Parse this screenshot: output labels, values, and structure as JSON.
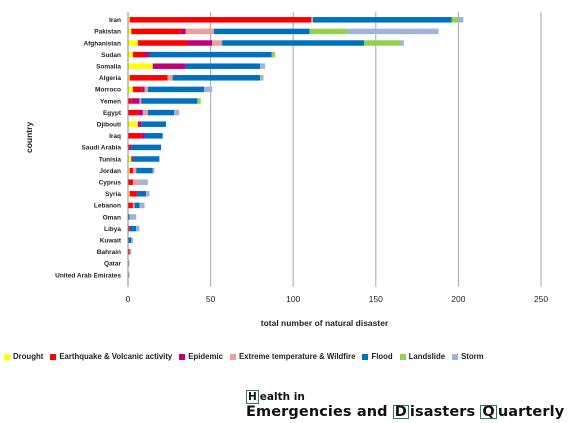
{
  "chart_data": {
    "type": "bar",
    "orientation": "horizontal",
    "stacked": true,
    "xlabel": "total number of natural disaster",
    "ylabel": "country",
    "xlim": [
      0,
      250
    ],
    "xticks": [
      0,
      50,
      100,
      150,
      200,
      250
    ],
    "grid": "vertical",
    "legend": "bottom",
    "categories": [
      "Iran",
      "Pakistan",
      "Afghanistan",
      "Sudan",
      "Somalia",
      "Algeria",
      "Morroco",
      "Yemen",
      "Egypt",
      "Djibouti",
      "Iraq",
      "Saudi Arabia",
      "Tunisia",
      "Jordan",
      "Cyprus",
      "Syria",
      "Lebanon",
      "Oman",
      "Libya",
      "Kuwait",
      "Bahrain",
      "Qatar",
      "United Arab Emirates"
    ],
    "series": [
      {
        "name": "Drought",
        "color": "#ffff00",
        "values": [
          1,
          2,
          6,
          3,
          15,
          1,
          3,
          0,
          0,
          6,
          0,
          0,
          2,
          1,
          0,
          1,
          0,
          0,
          0,
          0,
          0,
          0,
          0
        ]
      },
      {
        "name": "Earthquake & Volcanic activity",
        "color": "#ff0000",
        "values": [
          110,
          30,
          30,
          7,
          0,
          23,
          5,
          2,
          6,
          0,
          8,
          1,
          0,
          2,
          3,
          4,
          3,
          0,
          1,
          0,
          1,
          0,
          0
        ]
      },
      {
        "name": "Epidemic",
        "color": "#c00078",
        "values": [
          0,
          3,
          15,
          3,
          20,
          0,
          2,
          5,
          3,
          2,
          2,
          1,
          1,
          0,
          0,
          1,
          0,
          0,
          0,
          0,
          0,
          0,
          0
        ]
      },
      {
        "name": "Extreme temperature & Wildfire",
        "color": "#e8a0a0",
        "values": [
          1,
          17,
          6,
          0,
          0,
          3,
          2,
          1,
          3,
          0,
          0,
          0,
          0,
          2,
          4,
          0,
          1,
          0,
          0,
          0,
          0,
          0,
          0
        ]
      },
      {
        "name": "Flood",
        "color": "#0070c0",
        "values": [
          84,
          58,
          86,
          74,
          45,
          53,
          34,
          34,
          16,
          15,
          11,
          18,
          16,
          10,
          0,
          5,
          3,
          1,
          4,
          2,
          0,
          0,
          0
        ]
      },
      {
        "name": "Landslide",
        "color": "#92d050",
        "values": [
          4,
          23,
          22,
          2,
          0,
          1,
          0,
          2,
          0,
          0,
          0,
          0,
          0,
          0,
          0,
          0,
          0,
          0,
          0,
          0,
          0,
          0,
          0
        ]
      },
      {
        "name": "Storm",
        "color": "#a0b4d8",
        "values": [
          3,
          55,
          2,
          0,
          3,
          1,
          5,
          0,
          3,
          0,
          0,
          0,
          0,
          1,
          5,
          2,
          3,
          4,
          2,
          1,
          1,
          1,
          1
        ]
      }
    ]
  },
  "logo": {
    "line1_boxed": "H",
    "line1_rest": "ealth in",
    "line2_part1": "Emergencies and ",
    "line2_boxed_d": "D",
    "line2_part2": "isasters ",
    "line2_boxed_q": "Q",
    "line2_part3": "uarterly"
  }
}
